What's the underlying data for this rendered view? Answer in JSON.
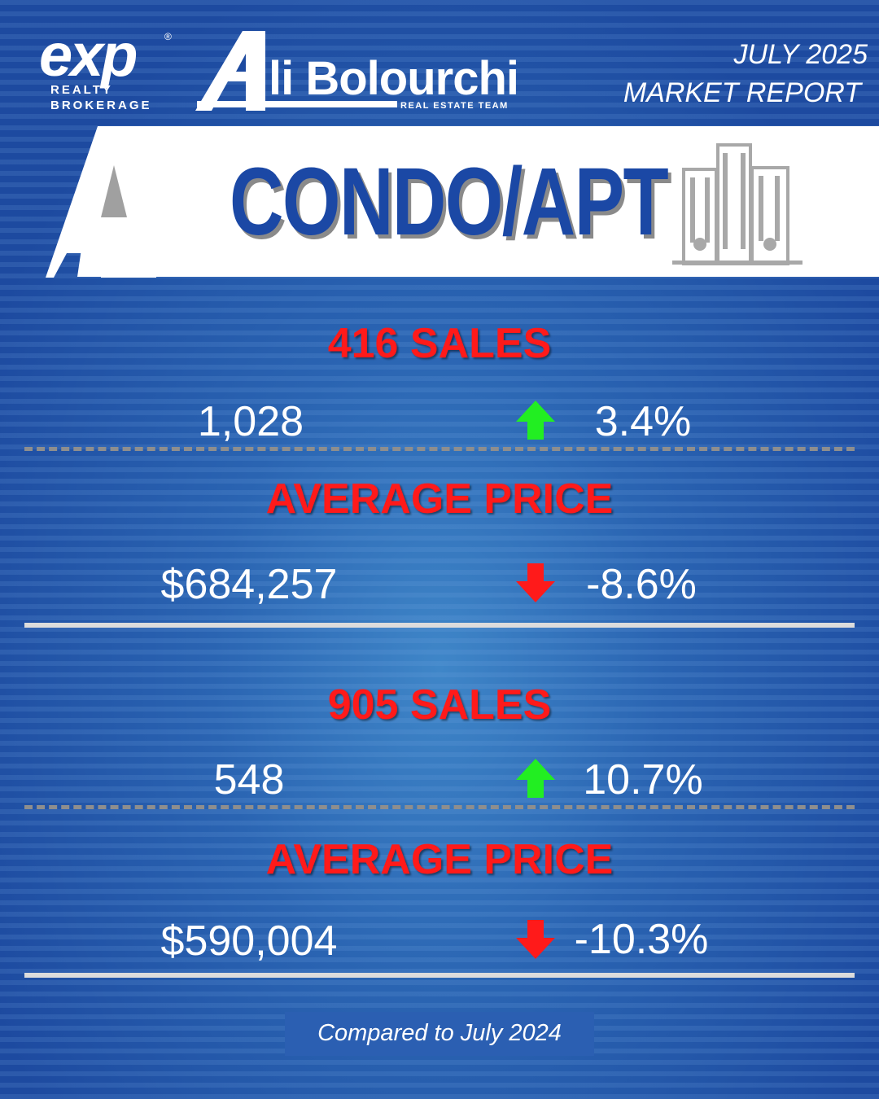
{
  "brand": {
    "exp_word": "exp",
    "exp_mark": "®",
    "exp_line1": "REALTY",
    "exp_line2": "BROKERAGE",
    "team_name": "li Bolourchi",
    "team_sub": "REAL ESTATE TEAM"
  },
  "report": {
    "line1": "JULY 2025",
    "line2": "MARKET REPORT"
  },
  "banner": {
    "title": "CONDO/APT",
    "icon": "condo-buildings-icon"
  },
  "sections": [
    {
      "title": "416 SALES",
      "value": "1,028",
      "direction": "up",
      "change": "3.4%"
    },
    {
      "title": "AVERAGE PRICE",
      "value": "$684,257",
      "direction": "down",
      "change": "-8.6%"
    },
    {
      "title": "905 SALES",
      "value": "548",
      "direction": "up",
      "change": "10.7%"
    },
    {
      "title": "AVERAGE PRICE",
      "value": "$590,004",
      "direction": "down",
      "change": "-10.3%"
    }
  ],
  "footnote": "Compared to July 2024",
  "colors": {
    "background": "#1d4aa0",
    "title_red": "#ff1a1a",
    "up_green": "#22ee22",
    "down_red": "#ff1a1a",
    "banner_blue": "#1b48a5"
  }
}
